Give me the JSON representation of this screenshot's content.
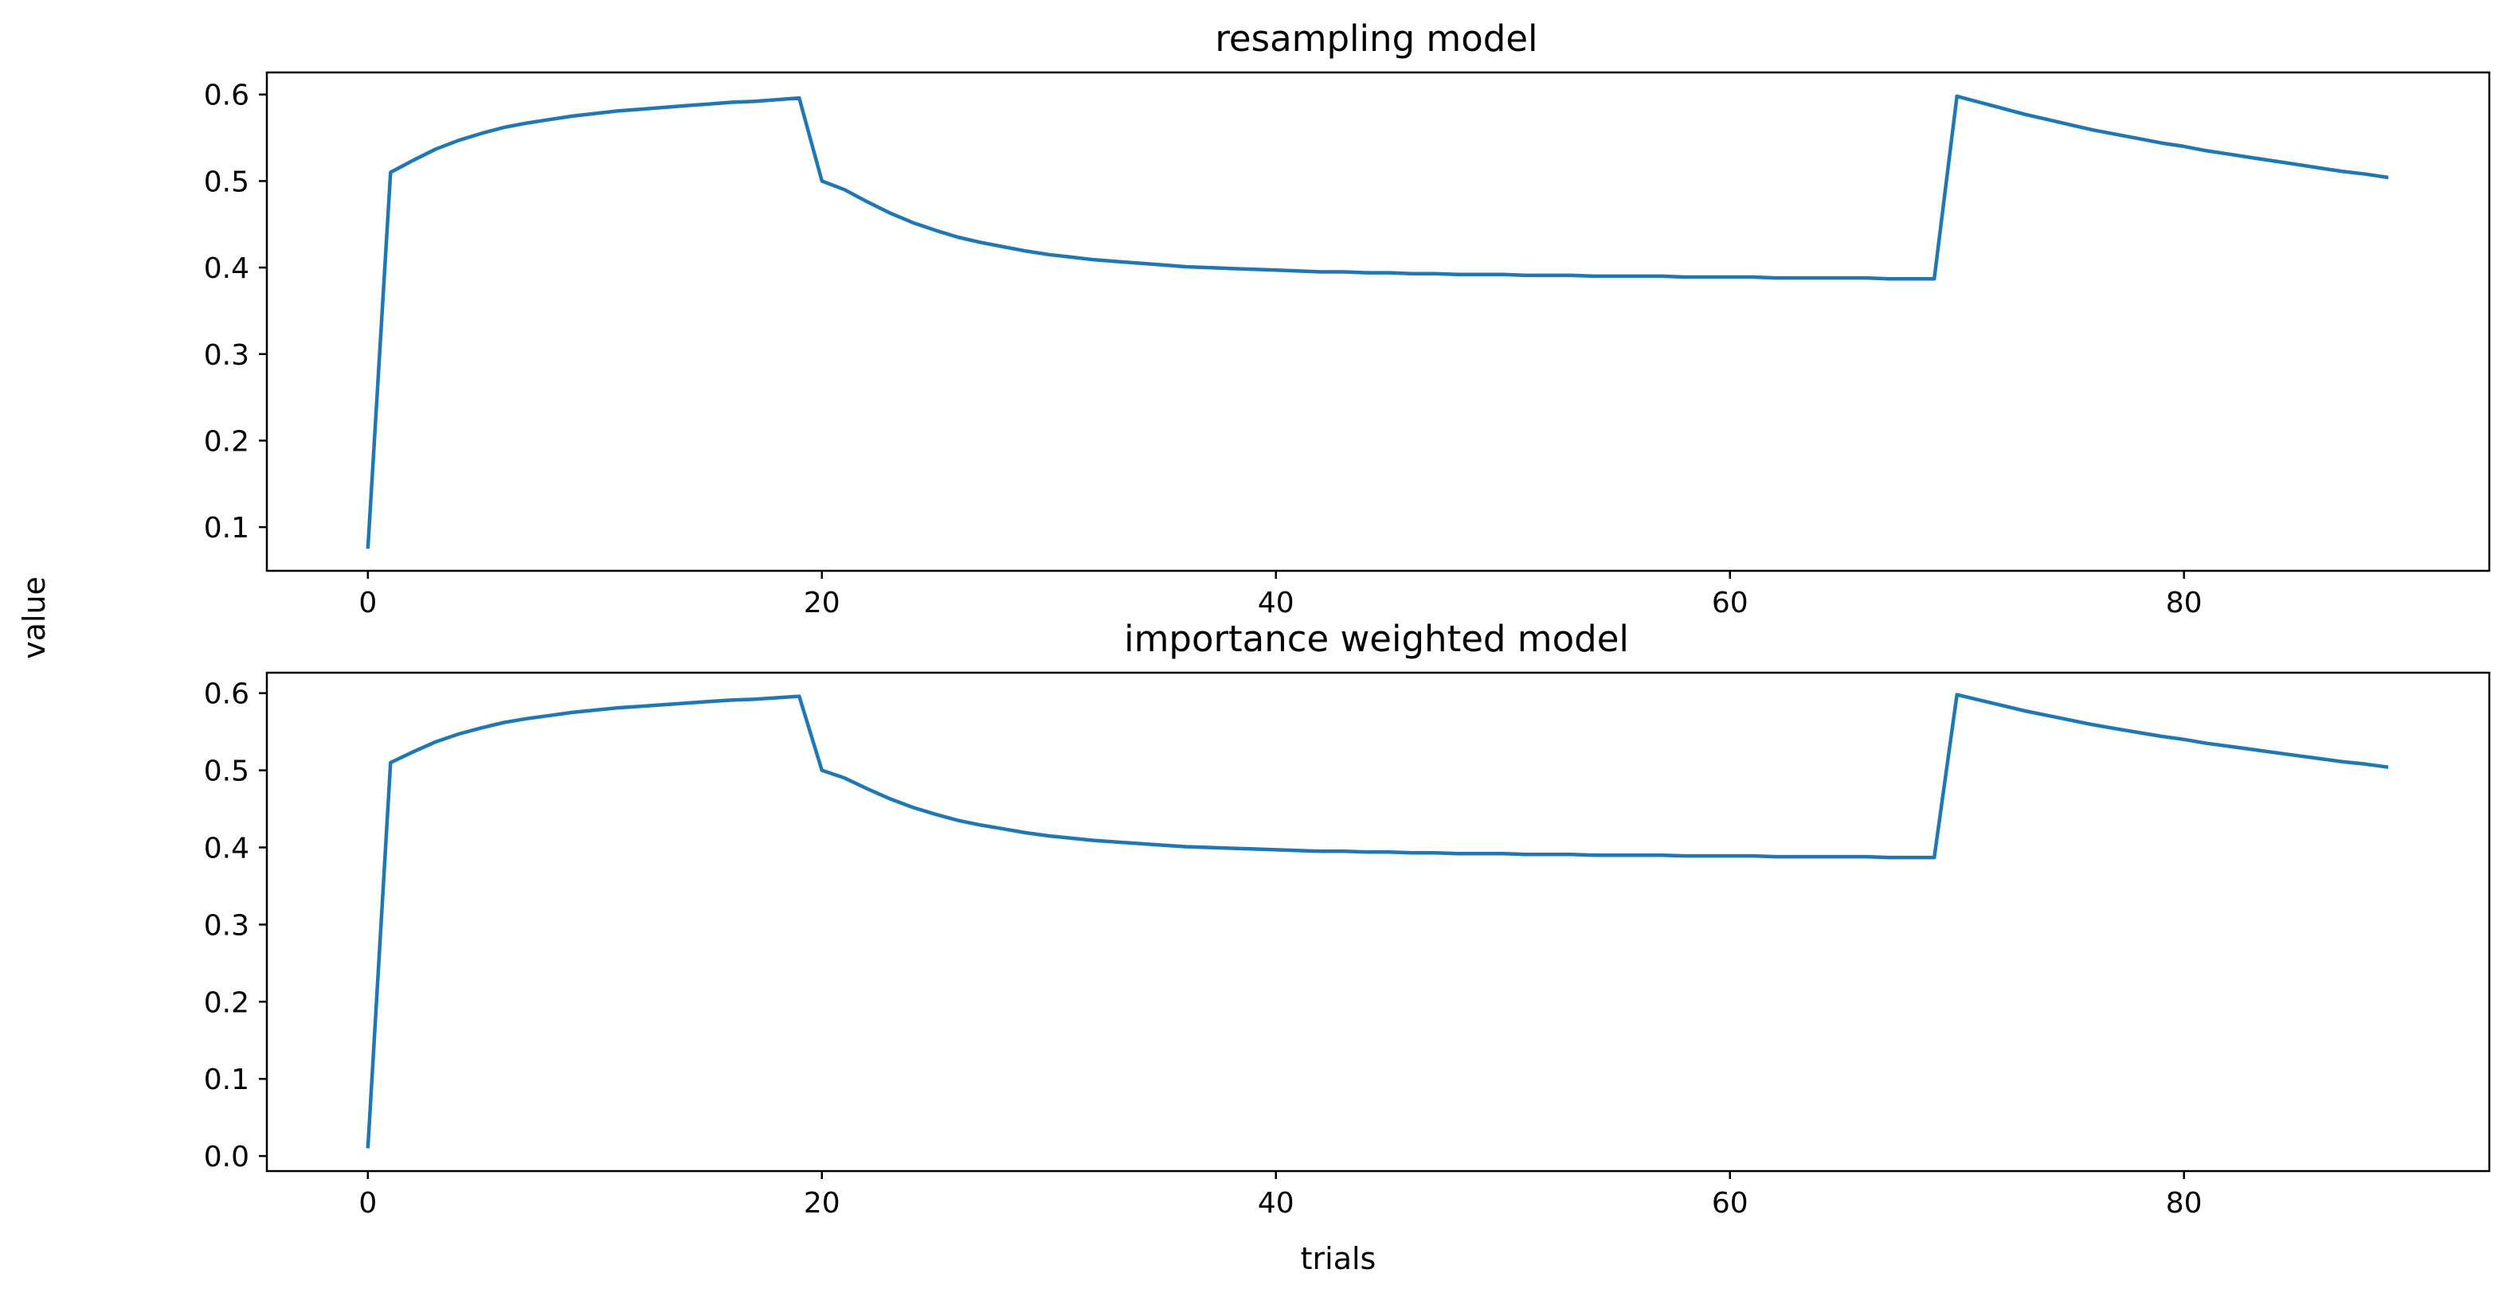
{
  "figure": {
    "ylabel": "value",
    "xlabel": "trials",
    "line_color": "#1f77b4"
  },
  "chart_data": [
    {
      "type": "line",
      "title": "resampling model",
      "xlabel": "",
      "ylabel": "value",
      "xlim": [
        -4.45,
        93.45
      ],
      "ylim": [
        0.0495,
        0.6255
      ],
      "xticks": [
        0,
        20,
        40,
        60,
        80
      ],
      "yticks": [
        0.1,
        0.2,
        0.3,
        0.4,
        0.5,
        0.6
      ],
      "ytick_labels": [
        "0.1",
        "0.2",
        "0.3",
        "0.4",
        "0.5",
        "0.6"
      ],
      "grid": false,
      "series": [
        {
          "name": "value",
          "x": [
            0,
            1,
            2,
            3,
            4,
            5,
            6,
            7,
            8,
            9,
            10,
            11,
            12,
            13,
            14,
            15,
            16,
            17,
            18,
            19,
            20,
            21,
            22,
            23,
            24,
            25,
            26,
            27,
            28,
            29,
            30,
            31,
            32,
            33,
            34,
            35,
            36,
            37,
            38,
            39,
            40,
            41,
            42,
            43,
            44,
            45,
            46,
            47,
            48,
            49,
            50,
            51,
            52,
            53,
            54,
            55,
            56,
            57,
            58,
            59,
            60,
            61,
            62,
            63,
            64,
            65,
            66,
            67,
            68,
            69,
            70,
            71,
            72,
            73,
            74,
            75,
            76,
            77,
            78,
            79,
            80,
            81,
            82,
            83,
            84,
            85,
            86,
            87,
            88,
            89
          ],
          "values": [
            0.075,
            0.51,
            0.524,
            0.537,
            0.547,
            0.555,
            0.562,
            0.567,
            0.571,
            0.575,
            0.578,
            0.581,
            0.583,
            0.585,
            0.587,
            0.589,
            0.591,
            0.592,
            0.594,
            0.596,
            0.5,
            0.49,
            0.476,
            0.463,
            0.452,
            0.443,
            0.435,
            0.429,
            0.424,
            0.419,
            0.415,
            0.412,
            0.409,
            0.407,
            0.405,
            0.403,
            0.401,
            0.4,
            0.399,
            0.398,
            0.397,
            0.396,
            0.395,
            0.395,
            0.394,
            0.394,
            0.393,
            0.393,
            0.392,
            0.392,
            0.392,
            0.391,
            0.391,
            0.391,
            0.39,
            0.39,
            0.39,
            0.39,
            0.389,
            0.389,
            0.389,
            0.389,
            0.388,
            0.388,
            0.388,
            0.388,
            0.388,
            0.387,
            0.387,
            0.387,
            0.598,
            0.591,
            0.584,
            0.577,
            0.571,
            0.565,
            0.559,
            0.554,
            0.549,
            0.544,
            0.54,
            0.535,
            0.531,
            0.527,
            0.523,
            0.519,
            0.515,
            0.511,
            0.508,
            0.504
          ]
        }
      ]
    },
    {
      "type": "line",
      "title": "importance weighted model",
      "xlabel": "trials",
      "ylabel": "value",
      "xlim": [
        -4.45,
        93.45
      ],
      "ylim": [
        -0.0195,
        0.6265
      ],
      "xticks": [
        0,
        20,
        40,
        60,
        80
      ],
      "yticks": [
        0.0,
        0.1,
        0.2,
        0.3,
        0.4,
        0.5,
        0.6
      ],
      "ytick_labels": [
        "0.0",
        "0.1",
        "0.2",
        "0.3",
        "0.4",
        "0.5",
        "0.6"
      ],
      "grid": false,
      "series": [
        {
          "name": "value",
          "x": [
            0,
            1,
            2,
            3,
            4,
            5,
            6,
            7,
            8,
            9,
            10,
            11,
            12,
            13,
            14,
            15,
            16,
            17,
            18,
            19,
            20,
            21,
            22,
            23,
            24,
            25,
            26,
            27,
            28,
            29,
            30,
            31,
            32,
            33,
            34,
            35,
            36,
            37,
            38,
            39,
            40,
            41,
            42,
            43,
            44,
            45,
            46,
            47,
            48,
            49,
            50,
            51,
            52,
            53,
            54,
            55,
            56,
            57,
            58,
            59,
            60,
            61,
            62,
            63,
            64,
            65,
            66,
            67,
            68,
            69,
            70,
            71,
            72,
            73,
            74,
            75,
            76,
            77,
            78,
            79,
            80,
            81,
            82,
            83,
            84,
            85,
            86,
            87,
            88,
            89
          ],
          "values": [
            0.01,
            0.51,
            0.524,
            0.537,
            0.547,
            0.555,
            0.562,
            0.567,
            0.571,
            0.575,
            0.578,
            0.581,
            0.583,
            0.585,
            0.587,
            0.589,
            0.591,
            0.592,
            0.594,
            0.596,
            0.5,
            0.49,
            0.476,
            0.463,
            0.452,
            0.443,
            0.435,
            0.429,
            0.424,
            0.419,
            0.415,
            0.412,
            0.409,
            0.407,
            0.405,
            0.403,
            0.401,
            0.4,
            0.399,
            0.398,
            0.397,
            0.396,
            0.395,
            0.395,
            0.394,
            0.394,
            0.393,
            0.393,
            0.392,
            0.392,
            0.392,
            0.391,
            0.391,
            0.391,
            0.39,
            0.39,
            0.39,
            0.39,
            0.389,
            0.389,
            0.389,
            0.389,
            0.388,
            0.388,
            0.388,
            0.388,
            0.388,
            0.387,
            0.387,
            0.387,
            0.598,
            0.591,
            0.584,
            0.577,
            0.571,
            0.565,
            0.559,
            0.554,
            0.549,
            0.544,
            0.54,
            0.535,
            0.531,
            0.527,
            0.523,
            0.519,
            0.515,
            0.511,
            0.508,
            0.504
          ]
        }
      ]
    }
  ]
}
